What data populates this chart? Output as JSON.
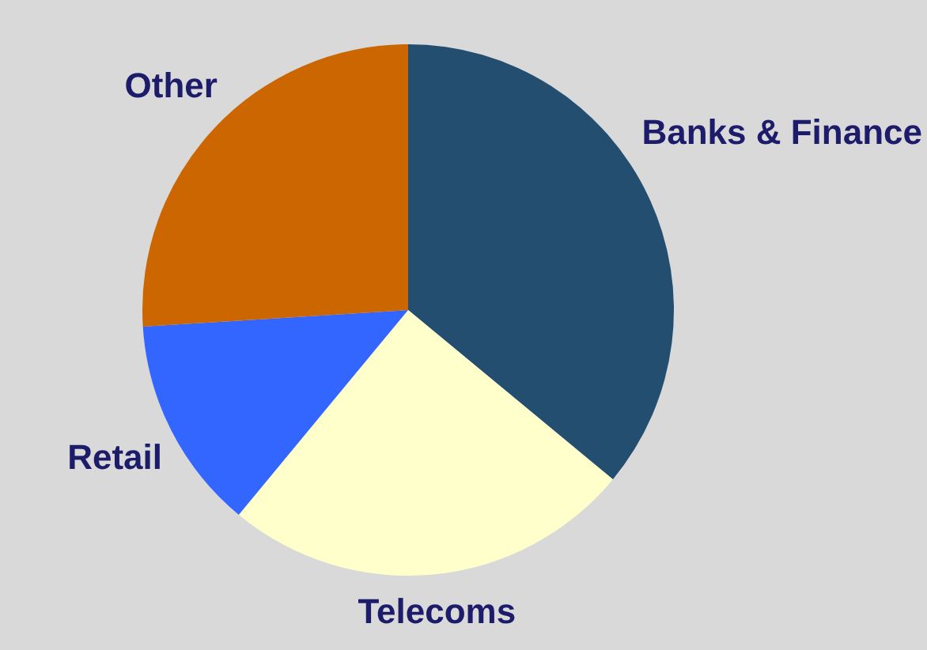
{
  "chart_data": {
    "type": "pie",
    "categories": [
      "Banks & Finance",
      "Telecoms",
      "Retail",
      "Other"
    ],
    "values": [
      36,
      25,
      13,
      26
    ],
    "colors": [
      "#234e70",
      "#ffffcc",
      "#3366ff",
      "#cc6600"
    ],
    "legend": false
  }
}
